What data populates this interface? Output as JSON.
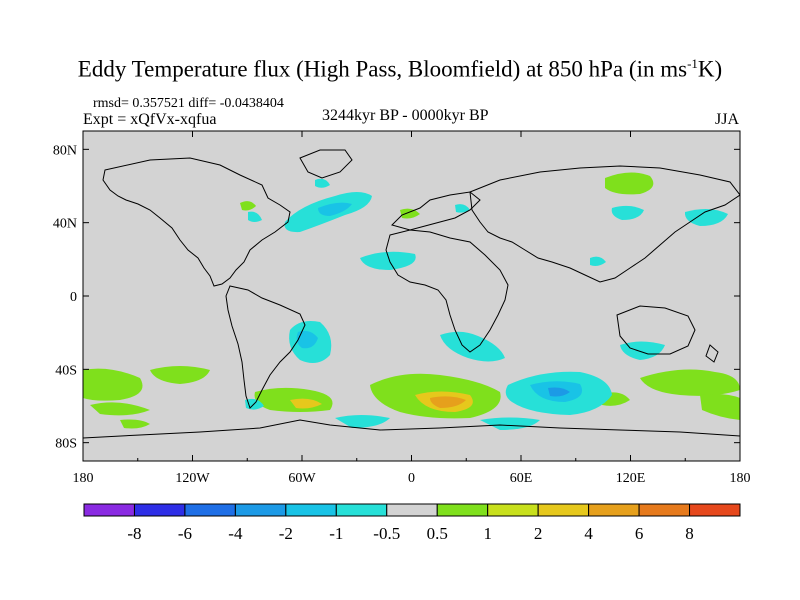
{
  "title": {
    "main": "Eddy Temperature flux (High Pass, Bloomfield) at 850 hPa (in ms",
    "superscript": "-1",
    "suffix": "K)"
  },
  "stats": "rmsd= 0.357521 diff= -0.0438404",
  "experiment": "Expt = xQfVx-xqfua",
  "period": "3244kyr BP - 0000kyr BP",
  "season": "JJA",
  "map": {
    "background_color": "#d3d3d3",
    "lon_labels": [
      {
        "lon": -180,
        "text": "180"
      },
      {
        "lon": -120,
        "text": "120W"
      },
      {
        "lon": -60,
        "text": "60W"
      },
      {
        "lon": 0,
        "text": "0"
      },
      {
        "lon": 60,
        "text": "60E"
      },
      {
        "lon": 120,
        "text": "120E"
      },
      {
        "lon": 180,
        "text": "180"
      }
    ],
    "lat_labels": [
      {
        "lat": 80,
        "text": "80N"
      },
      {
        "lat": 40,
        "text": "40N"
      },
      {
        "lat": 0,
        "text": "0"
      },
      {
        "lat": -40,
        "text": "40S"
      },
      {
        "lat": -80,
        "text": "80S"
      }
    ]
  },
  "colorbar": {
    "colors": [
      "#8a2be2",
      "#2e2ee6",
      "#1f6fe6",
      "#1c9ae6",
      "#19c3e6",
      "#27e0d8",
      "#d3d3d3",
      "#7fe01c",
      "#c8e01c",
      "#e6c81c",
      "#e6a01c",
      "#e67a1c",
      "#e6481c"
    ],
    "labels": [
      "-8",
      "-6",
      "-4",
      "-2",
      "-1",
      "-0.5",
      "0.5",
      "1",
      "2",
      "4",
      "6",
      "8"
    ]
  }
}
